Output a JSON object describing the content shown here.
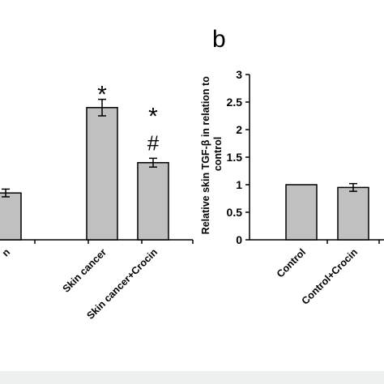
{
  "chart_data": [
    {
      "type": "bar",
      "panel_label": "",
      "categories": [
        "Control+Crocin",
        "Skin cancer",
        "Skin cancer+Crocin"
      ],
      "category_visible_text": [
        "n",
        "Skin cancer",
        "Skin cancer+Crocin"
      ],
      "values": [
        0.85,
        2.4,
        1.4
      ],
      "errors": [
        0.07,
        0.15,
        0.08
      ],
      "annotations": [
        {
          "category_index": 1,
          "text": "*"
        },
        {
          "category_index": 2,
          "text": "*"
        },
        {
          "category_index": 2,
          "text": "#"
        }
      ],
      "ylim": [
        0,
        3
      ],
      "bar_color": "#c0c0c0"
    },
    {
      "type": "bar",
      "panel_label": "b",
      "ylabel": "Relative skin TGF-β in relation to control",
      "categories": [
        "Control",
        "Control+Crocin"
      ],
      "values": [
        1.0,
        0.95
      ],
      "errors": [
        0.0,
        0.07
      ],
      "ylim": [
        0,
        3
      ],
      "yticks": [
        "0",
        "0.5",
        "1",
        "1.5",
        "2",
        "2.5",
        "3"
      ],
      "bar_color": "#c0c0c0"
    }
  ],
  "bottom_band_color": "#eef0f0"
}
